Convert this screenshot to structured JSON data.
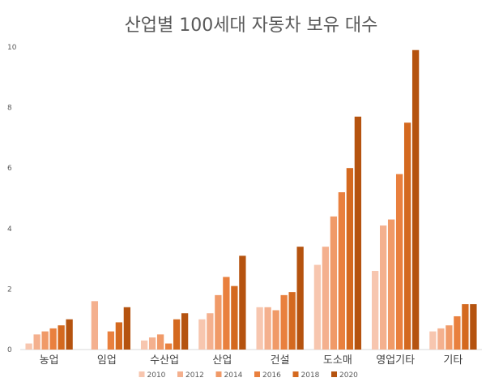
{
  "chart_data": {
    "type": "bar",
    "title": "산업별 100세대 자동차 보유 대수",
    "xlabel": "",
    "ylabel": "",
    "ylim": [
      0,
      10
    ],
    "yticks": [
      0,
      2,
      4,
      6,
      8,
      10
    ],
    "grid": false,
    "legend_position": "bottom",
    "categories": [
      "농업",
      "임업",
      "수산업",
      "산업",
      "건설",
      "도소매",
      "영업기타",
      "기타"
    ],
    "series": [
      {
        "name": "2010",
        "color": "#F7C6AF",
        "values": [
          0.2,
          null,
          0.3,
          1.0,
          1.4,
          2.8,
          2.6,
          0.6
        ]
      },
      {
        "name": "2012",
        "color": "#F4B08E",
        "values": [
          0.5,
          1.6,
          0.4,
          1.2,
          1.4,
          3.4,
          4.1,
          0.7
        ]
      },
      {
        "name": "2014",
        "color": "#F09A68",
        "values": [
          0.6,
          null,
          0.5,
          1.8,
          1.3,
          4.4,
          4.3,
          0.8
        ]
      },
      {
        "name": "2016",
        "color": "#E9803E",
        "values": [
          0.7,
          0.6,
          0.2,
          2.4,
          1.8,
          5.2,
          5.8,
          1.1
        ]
      },
      {
        "name": "2018",
        "color": "#D4691F",
        "values": [
          0.8,
          0.9,
          1.0,
          2.1,
          1.9,
          6.0,
          7.5,
          1.5
        ]
      },
      {
        "name": "2020",
        "color": "#B5530F",
        "values": [
          1.0,
          1.4,
          1.2,
          3.1,
          3.4,
          7.7,
          9.9,
          1.5
        ]
      }
    ]
  }
}
